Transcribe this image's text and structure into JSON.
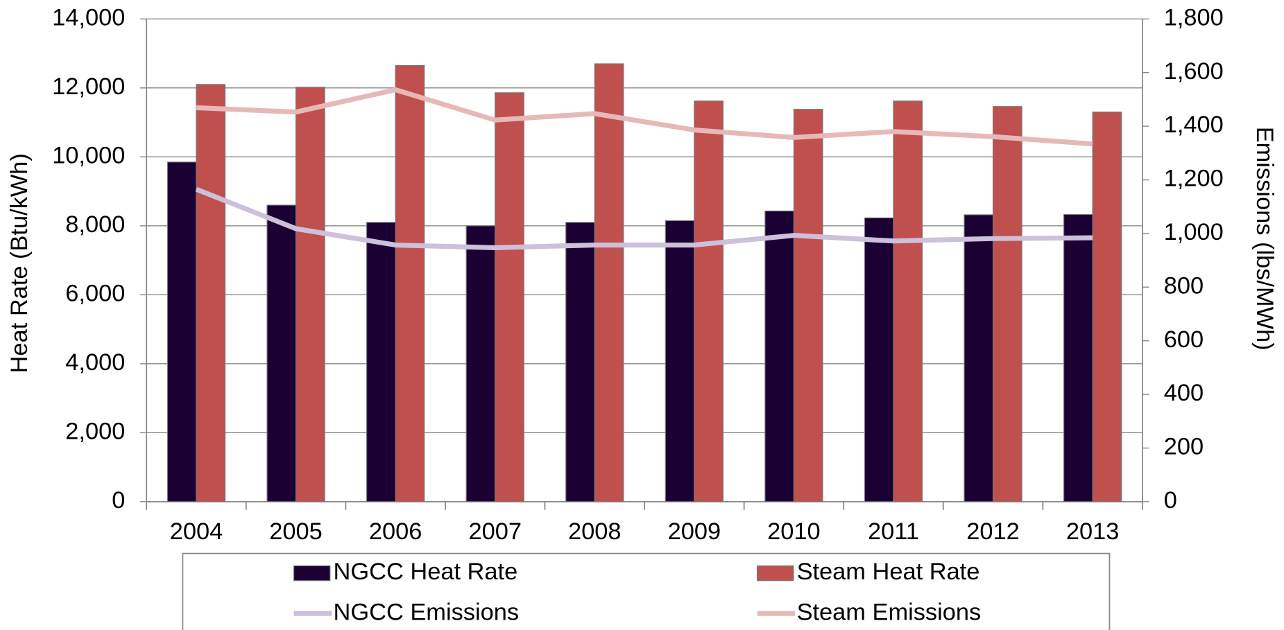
{
  "chart_data": {
    "type": "combo",
    "y_axis_label": "Heat Rate (Btu/kWh)",
    "y2_axis_label": "Emissions (lbs/MWh)",
    "categories": [
      "2004",
      "2005",
      "2006",
      "2007",
      "2008",
      "2009",
      "2010",
      "2011",
      "2012",
      "2013"
    ],
    "series": [
      {
        "name": "NGCC Heat Rate",
        "type": "bar",
        "color": "#1a0033",
        "values": [
          9850,
          8600,
          8100,
          8000,
          8100,
          8150,
          8430,
          8230,
          8320,
          8330
        ]
      },
      {
        "name": "Steam Heat Rate",
        "type": "bar",
        "color": "#c0504d",
        "values": [
          12100,
          12020,
          12650,
          11860,
          12700,
          11620,
          11380,
          11620,
          11460,
          11300
        ]
      },
      {
        "name": "NGCC Emissions",
        "type": "line",
        "axis": "y2",
        "color": "#ccc0da",
        "values": [
          1165,
          1018,
          957,
          947,
          957,
          957,
          993,
          972,
          981,
          984
        ]
      },
      {
        "name": "Steam Emissions",
        "type": "line",
        "axis": "y2",
        "color": "#e6b9b8",
        "values": [
          1469,
          1453,
          1536,
          1423,
          1447,
          1386,
          1358,
          1380,
          1361,
          1334
        ]
      }
    ],
    "ylim": [
      0,
      14000
    ],
    "yticks": [
      0,
      {
        "value": 2000,
        "label": "2,000"
      },
      {
        "value": 4000,
        "label": "4,000"
      },
      {
        "value": 6000,
        "label": "6,000"
      },
      {
        "value": 8000,
        "label": "8,000"
      },
      {
        "value": 10000,
        "label": "10,000"
      },
      {
        "value": 12000,
        "label": "12,000"
      },
      {
        "value": 14000,
        "label": "14,000"
      }
    ],
    "y2lim": [
      0,
      1800
    ],
    "y2ticks": [
      0,
      200,
      400,
      600,
      800,
      {
        "value": 1000,
        "label": "1,000"
      },
      {
        "value": 1200,
        "label": "1,200"
      },
      {
        "value": 1400,
        "label": "1,400"
      },
      {
        "value": 1600,
        "label": "1,600"
      },
      {
        "value": 1800,
        "label": "1,800"
      }
    ],
    "grid": true,
    "legend": "bottom"
  }
}
